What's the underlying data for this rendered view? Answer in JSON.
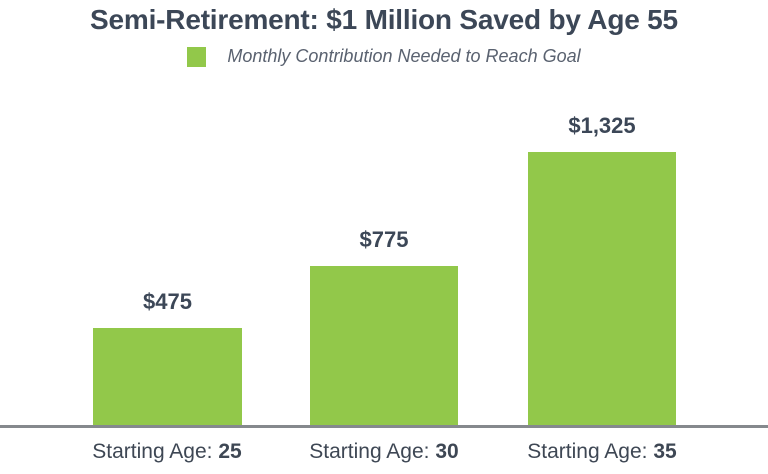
{
  "page": {
    "title": "Semi-Retirement: $1 Million Saved by Age 55"
  },
  "legend": {
    "swatch_color": "#92c84a",
    "label": "Monthly Contribution Needed to Reach Goal"
  },
  "chart_data": {
    "type": "bar",
    "title": "Semi-Retirement: $1 Million Saved by Age 55",
    "legend": [
      "Monthly Contribution Needed to Reach Goal"
    ],
    "legend_position": "top",
    "categories": [
      "Starting Age: 25",
      "Starting Age: 30",
      "Starting Age: 35"
    ],
    "category_prefix": "Starting Age:",
    "category_strong": [
      "25",
      "30",
      "35"
    ],
    "values": [
      475,
      775,
      1325
    ],
    "value_labels": [
      "$475",
      "$775",
      "$1,325"
    ],
    "bar_color": "#92c84a",
    "ylim": [
      0,
      1400
    ],
    "grid": false,
    "xlabel": "",
    "ylabel": ""
  },
  "colors": {
    "bar_green": "#92c84a",
    "heading_text": "#3c4757",
    "legend_text": "#5a6270",
    "axis_line": "#85898d",
    "background": "#ffffff"
  }
}
